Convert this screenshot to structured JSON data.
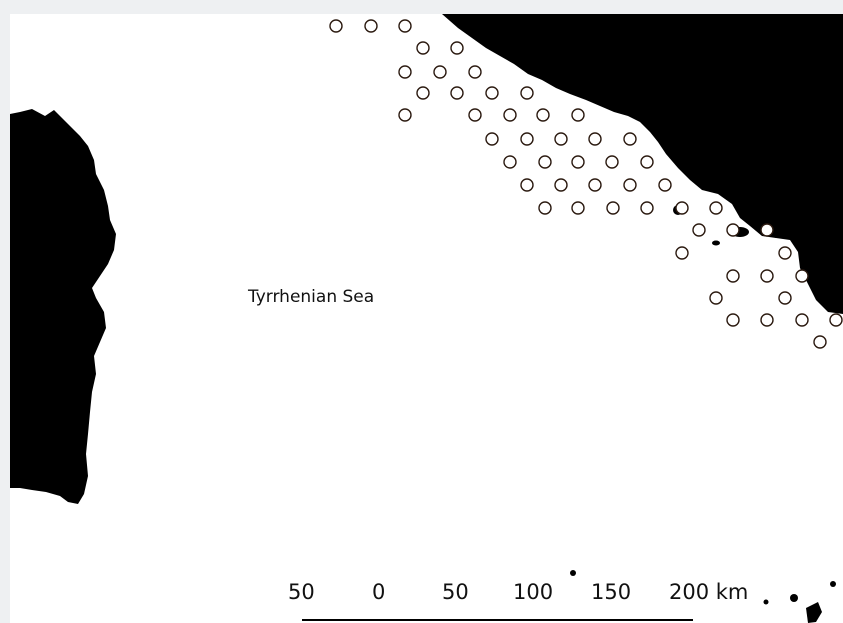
{
  "map": {
    "sea_label": "Tyrrhenian Sea",
    "colors": {
      "land": "#000000",
      "sea": "#ffffff",
      "marker_fill": "#ffffff",
      "marker_stroke": "#2b1a10"
    },
    "marker_icon": "hollow-circle-icon"
  },
  "scale_bar": {
    "labels": [
      "50",
      "0",
      "50",
      "100",
      "150",
      "200 km"
    ]
  }
}
